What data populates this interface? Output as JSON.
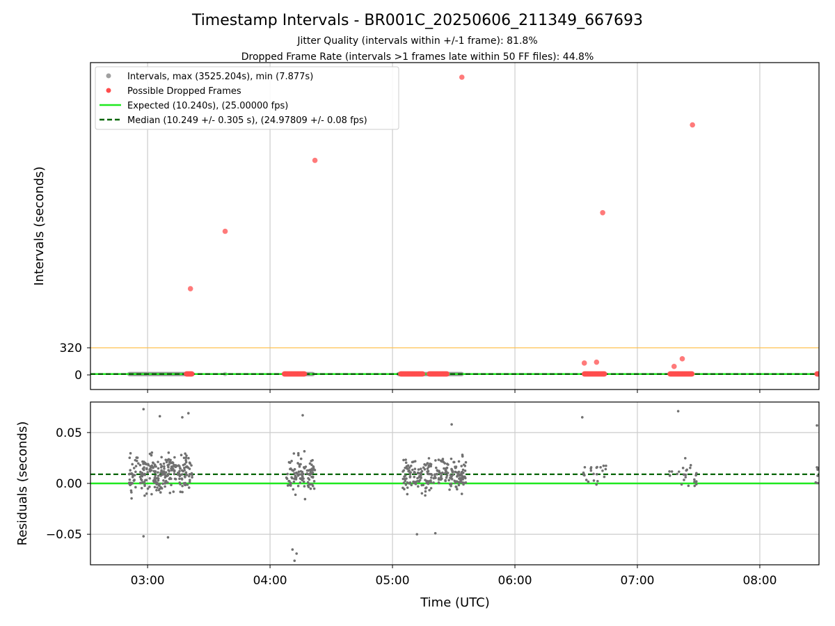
{
  "figure": {
    "title": "Timestamp Intervals - BR001C_20250606_211349_667693",
    "subtitle_1": "Jitter Quality (intervals within +/-1 frame): 81.8%",
    "subtitle_2": "Dropped Frame Rate (intervals >1 frames late within 50 FF files): 44.8%"
  },
  "colors": {
    "intervals": "#a0a0a0",
    "dropped": "#ff4d4d",
    "expected": "#1ee81e",
    "median": "#006400",
    "threshold": "#ffc04d",
    "grid": "#cccccc",
    "residuals": "#707070"
  },
  "chart_data": [
    {
      "type": "scatter",
      "panel": "top",
      "ylabel": "Intervals (seconds)",
      "xlabel": "",
      "x_ticks": [
        "03:00",
        "04:00",
        "05:00",
        "06:00",
        "07:00",
        "08:00"
      ],
      "xlim": [
        "02:32",
        "08:29"
      ],
      "y_ticks": [
        0,
        320
      ],
      "ylim": [
        -170,
        3700
      ],
      "grid": "vertical",
      "legend_position": "upper-left",
      "legend": {
        "intervals": "Intervals, max (3525.204s), min (7.877s)",
        "dropped": "Possible Dropped Frames",
        "expected": "Expected (10.240s), (25.00000 fps)",
        "median": "Median (10.249 +/- 0.305 s), (24.97809 +/- 0.08 fps)"
      },
      "expected_value": 10.24,
      "median_value": 10.249,
      "threshold_value": 320,
      "interval_segments": [
        {
          "start": "02:51",
          "end": "03:22"
        },
        {
          "start": "04:07",
          "end": "04:21"
        },
        {
          "start": "05:03",
          "end": "05:34"
        }
      ],
      "dropped_frames": [
        {
          "t": "03:21",
          "v": 1020
        },
        {
          "t": "03:38",
          "v": 1700
        },
        {
          "t": "04:22",
          "v": 2540
        },
        {
          "t": "05:34",
          "v": 3525
        },
        {
          "t": "06:34",
          "v": 140
        },
        {
          "t": "06:40",
          "v": 150
        },
        {
          "t": "06:43",
          "v": 1920
        },
        {
          "t": "07:18",
          "v": 100
        },
        {
          "t": "07:22",
          "v": 190
        },
        {
          "t": "07:27",
          "v": 2960
        }
      ],
      "dropped_clusters": [
        {
          "start": "03:19",
          "end": "03:22"
        },
        {
          "start": "04:07",
          "end": "04:17"
        },
        {
          "start": "05:04",
          "end": "05:15"
        },
        {
          "start": "05:18",
          "end": "05:27"
        },
        {
          "start": "06:34",
          "end": "06:44"
        },
        {
          "start": "07:16",
          "end": "07:27"
        },
        {
          "start": "08:28",
          "end": "08:29"
        }
      ]
    },
    {
      "type": "scatter",
      "panel": "bottom",
      "xlabel": "Time (UTC)",
      "ylabel": "Residuals (seconds)",
      "x_ticks": [
        "03:00",
        "04:00",
        "05:00",
        "06:00",
        "07:00",
        "08:00"
      ],
      "xlim": [
        "02:32",
        "08:29"
      ],
      "y_ticks": [
        0.05,
        0.0,
        -0.05
      ],
      "y_tick_labels": [
        "0.05",
        "0.00",
        "−0.05"
      ],
      "ylim": [
        -0.08,
        0.08
      ],
      "grid": "both",
      "expected_residual": 0.0,
      "median_residual": 0.009,
      "residual_clusters": [
        {
          "start": "02:51",
          "end": "03:22",
          "count": 260,
          "spread": 0.03
        },
        {
          "start": "04:08",
          "end": "04:22",
          "count": 100,
          "spread": 0.03
        },
        {
          "start": "05:05",
          "end": "05:36",
          "count": 240,
          "spread": 0.028
        },
        {
          "start": "06:33",
          "end": "06:45",
          "count": 22,
          "spread": 0.02
        },
        {
          "start": "07:15",
          "end": "07:29",
          "count": 26,
          "spread": 0.02
        },
        {
          "start": "08:27",
          "end": "08:29",
          "count": 6,
          "spread": 0.02
        }
      ],
      "outliers": [
        {
          "t": "02:58",
          "v": 0.073
        },
        {
          "t": "03:06",
          "v": 0.066
        },
        {
          "t": "03:17",
          "v": 0.065
        },
        {
          "t": "03:20",
          "v": 0.069
        },
        {
          "t": "02:58",
          "v": -0.052
        },
        {
          "t": "03:10",
          "v": -0.053
        },
        {
          "t": "04:16",
          "v": 0.067
        },
        {
          "t": "04:11",
          "v": -0.065
        },
        {
          "t": "04:12",
          "v": -0.076
        },
        {
          "t": "04:13",
          "v": -0.069
        },
        {
          "t": "05:12",
          "v": -0.05
        },
        {
          "t": "05:21",
          "v": -0.049
        },
        {
          "t": "05:29",
          "v": 0.058
        },
        {
          "t": "06:33",
          "v": 0.065
        },
        {
          "t": "07:20",
          "v": 0.071
        },
        {
          "t": "08:28",
          "v": 0.057
        }
      ]
    }
  ]
}
